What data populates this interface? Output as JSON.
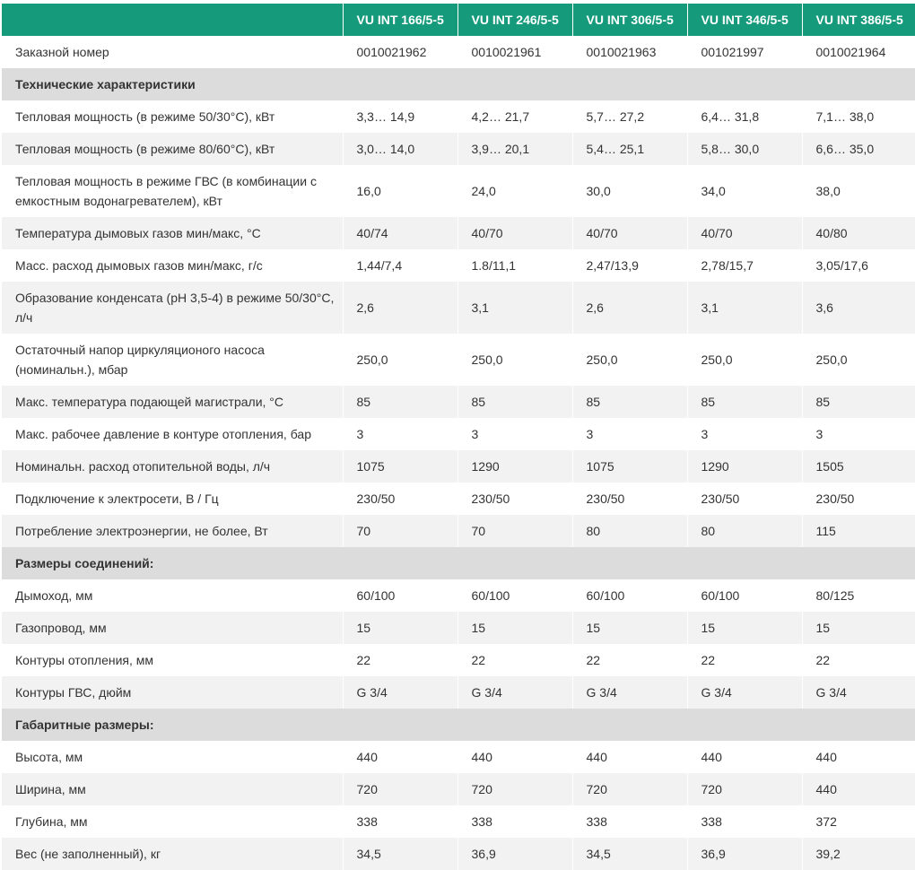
{
  "table": {
    "headers": [
      "",
      "VU INT 166/5-5",
      "VU INT 246/5-5",
      "VU INT 306/5-5",
      "VU INT 346/5-5",
      "VU INT 386/5-5"
    ],
    "rows": [
      {
        "type": "data",
        "cells": [
          "Заказной номер",
          "0010021962",
          "0010021961",
          "0010021963",
          "001021997",
          "0010021964"
        ]
      },
      {
        "type": "section",
        "cells": [
          "Технические характеристики"
        ]
      },
      {
        "type": "data",
        "cells": [
          "Тепловая мощность (в режиме 50/30°С), кВт",
          "3,3… 14,9",
          "4,2… 21,7",
          "5,7… 27,2",
          "6,4… 31,8",
          "7,1… 38,0"
        ]
      },
      {
        "type": "data",
        "cells": [
          "Тепловая мощность (в режиме 80/60°С), кВт",
          "3,0… 14,0",
          "3,9… 20,1",
          "5,4… 25,1",
          "5,8… 30,0",
          "6,6… 35,0"
        ]
      },
      {
        "type": "data",
        "tall": true,
        "cells": [
          "Тепловая мощность в режиме ГВС (в комбинации с емкостным водонагревателем), кВт",
          "16,0",
          "24,0",
          "30,0",
          "34,0",
          "38,0"
        ]
      },
      {
        "type": "data",
        "cells": [
          "Температура дымовых газов мин/макс, °С",
          "40/74",
          "40/70",
          "40/70",
          "40/70",
          "40/80"
        ]
      },
      {
        "type": "data",
        "cells": [
          "Масс. расход дымовых газов мин/макс, г/с",
          "1,44/7,4",
          "1.8/11,1",
          "2,47/13,9",
          "2,78/15,7",
          "3,05/17,6"
        ]
      },
      {
        "type": "data",
        "tall": true,
        "cells": [
          "Образование конденсата (pH 3,5-4) в режиме 50/30°С, л/ч",
          "2,6",
          "3,1",
          "2,6",
          "3,1",
          "3,6"
        ]
      },
      {
        "type": "data",
        "tall": true,
        "cells": [
          "Остаточный напор циркуляционого насоса (номинальн.), мбар",
          "250,0",
          "250,0",
          "250,0",
          "250,0",
          "250,0"
        ]
      },
      {
        "type": "data",
        "cells": [
          "Макс. температура подающей магистрали, °С",
          "85",
          "85",
          "85",
          "85",
          "85"
        ]
      },
      {
        "type": "data",
        "cells": [
          "Макс. рабочее давление в контуре отопления, бар",
          "3",
          "3",
          "3",
          "3",
          "3"
        ]
      },
      {
        "type": "data",
        "cells": [
          "Номинальн. расход отопительной воды, л/ч",
          "1075",
          "1290",
          "1075",
          "1290",
          "1505"
        ]
      },
      {
        "type": "data",
        "cells": [
          "Подключение к электросети, В / Гц",
          "230/50",
          "230/50",
          "230/50",
          "230/50",
          "230/50"
        ]
      },
      {
        "type": "data",
        "cells": [
          "Потребление электроэнергии, не более, Вт",
          "70",
          "70",
          "80",
          "80",
          "115"
        ]
      },
      {
        "type": "section",
        "cells": [
          "Размеры соединений:"
        ]
      },
      {
        "type": "data",
        "cells": [
          "Дымоход, мм",
          "60/100",
          "60/100",
          "60/100",
          "60/100",
          "80/125"
        ]
      },
      {
        "type": "data",
        "cells": [
          "Газопровод, мм",
          "15",
          "15",
          "15",
          "15",
          "15"
        ]
      },
      {
        "type": "data",
        "cells": [
          "Контуры отопления, мм",
          "22",
          "22",
          "22",
          "22",
          "22"
        ]
      },
      {
        "type": "data",
        "cells": [
          "Контуры ГВС, дюйм",
          "G 3/4",
          "G 3/4",
          "G 3/4",
          "G 3/4",
          "G 3/4"
        ]
      },
      {
        "type": "section",
        "cells": [
          "Габаритные размеры:"
        ]
      },
      {
        "type": "data",
        "cells": [
          "Высота, мм",
          "440",
          "440",
          "440",
          "440",
          "440"
        ]
      },
      {
        "type": "data",
        "cells": [
          "Ширина, мм",
          "720",
          "720",
          "720",
          "720",
          "440"
        ]
      },
      {
        "type": "data",
        "cells": [
          "Глубина, мм",
          "338",
          "338",
          "338",
          "338",
          "372"
        ]
      },
      {
        "type": "data",
        "cells": [
          "Вес (не заполненный), кг",
          "34,5",
          "36,9",
          "34,5",
          "36,9",
          "39,2"
        ]
      }
    ]
  },
  "colors": {
    "header_bg": "#159a7c",
    "header_text": "#ffffff",
    "section_bg": "#dcdcdc",
    "row_alt_bg": "#f2f2f2",
    "row_bg": "#ffffff",
    "text": "#333333"
  }
}
